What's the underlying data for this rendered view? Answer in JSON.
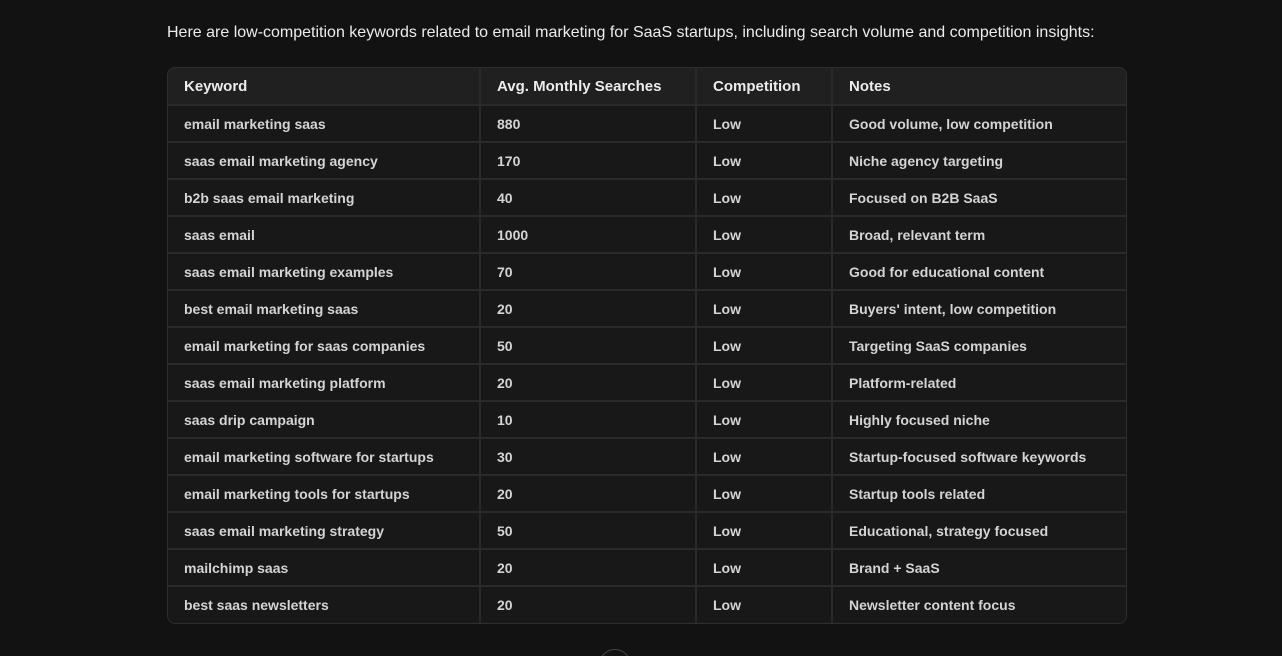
{
  "intro": "Here are low-competition keywords related to email marketing for SaaS startups, including search volume and competition insights:",
  "table": {
    "headers": [
      "Keyword",
      "Avg. Monthly Searches",
      "Competition",
      "Notes"
    ],
    "rows": [
      [
        "email marketing saas",
        "880",
        "Low",
        "Good volume, low competition"
      ],
      [
        "saas email marketing agency",
        "170",
        "Low",
        "Niche agency targeting"
      ],
      [
        "b2b saas email marketing",
        "40",
        "Low",
        "Focused on B2B SaaS"
      ],
      [
        "saas email",
        "1000",
        "Low",
        "Broad, relevant term"
      ],
      [
        "saas email marketing examples",
        "70",
        "Low",
        "Good for educational content"
      ],
      [
        "best email marketing saas",
        "20",
        "Low",
        "Buyers' intent, low competition"
      ],
      [
        "email marketing for saas companies",
        "50",
        "Low",
        "Targeting SaaS companies"
      ],
      [
        "saas email marketing platform",
        "20",
        "Low",
        "Platform-related"
      ],
      [
        "saas drip campaign",
        "10",
        "Low",
        "Highly focused niche"
      ],
      [
        "email marketing software for startups",
        "30",
        "Low",
        "Startup-focused software keywords"
      ],
      [
        "email marketing tools for startups",
        "20",
        "Low",
        "Startup tools related"
      ],
      [
        "saas email marketing strategy",
        "50",
        "Low",
        "Educational, strategy focused"
      ],
      [
        "mailchimp saas",
        "20",
        "Low",
        "Brand + SaaS"
      ],
      [
        "best saas newsletters",
        "20",
        "Low",
        "Newsletter content focus"
      ]
    ]
  },
  "scroll_button": {
    "icon": "arrow-down-icon"
  }
}
